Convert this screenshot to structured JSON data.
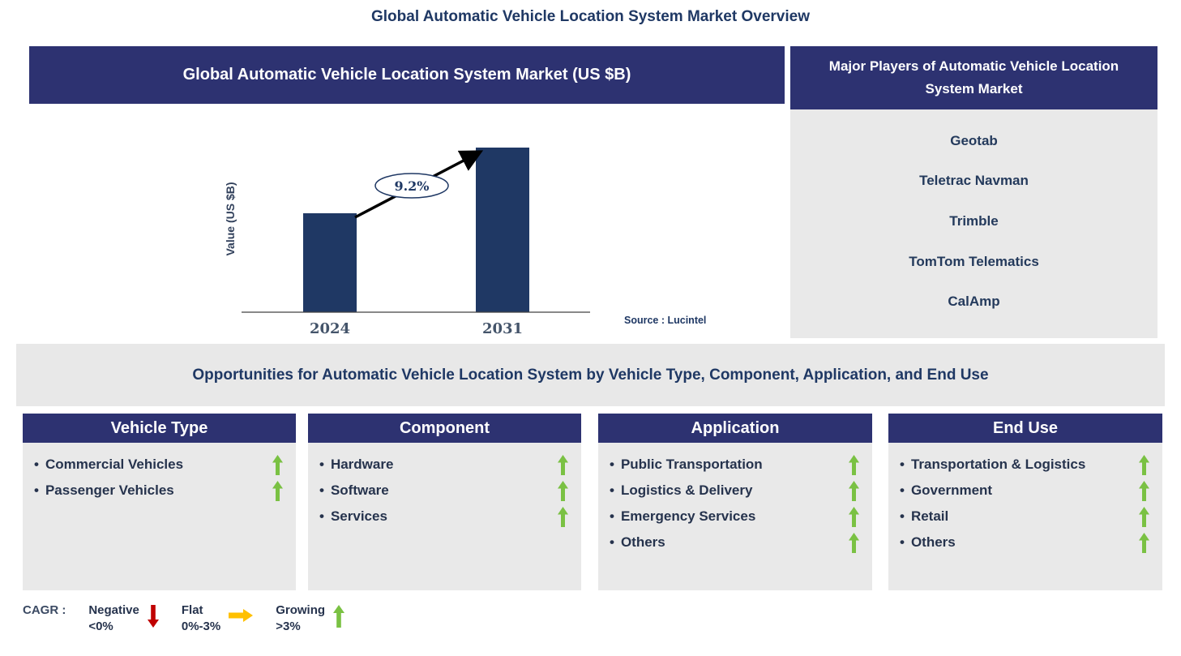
{
  "page": {
    "title": "Global Automatic Vehicle Location System Market Overview"
  },
  "market_chart": {
    "header": "Global Automatic Vehicle Location System Market (US $B)",
    "source": "Source : Lucintel"
  },
  "chart_data": {
    "type": "bar",
    "title": "Global Automatic Vehicle Location System Market (US $B)",
    "categories": [
      "2024",
      "2031"
    ],
    "values_relative": [
      0.6,
      1.0
    ],
    "value_axis_labeled": false,
    "ylabel": "Value (US $B)",
    "xlabel": "",
    "cagr_label": "9.2%",
    "annotation": "Growth arrow from top of 2024 bar to top of 2031 bar with CAGR 9.2% in ellipse",
    "bar_color": "#1F3864",
    "grid": false,
    "legend_position": "none"
  },
  "major_players": {
    "header": "Major Players of Automatic Vehicle Location System Market",
    "names": [
      "Geotab",
      "Teletrac Navman",
      "Trimble",
      "TomTom Telematics",
      "CalAmp"
    ]
  },
  "opportunities": {
    "title": "Opportunities for Automatic Vehicle Location System by Vehicle Type, Component, Application, and End Use",
    "bullet": "•",
    "columns": [
      {
        "title": "Vehicle Type",
        "items": [
          "Commercial Vehicles",
          "Passenger Vehicles"
        ]
      },
      {
        "title": "Component",
        "items": [
          "Hardware",
          "Software",
          "Services"
        ]
      },
      {
        "title": "Application",
        "items": [
          "Public Transportation",
          "Logistics & Delivery",
          "Emergency Services",
          "Others"
        ]
      },
      {
        "title": "End Use",
        "items": [
          "Transportation & Logistics",
          "Government",
          "Retail",
          "Others"
        ]
      }
    ],
    "item_trend": "growing"
  },
  "legend": {
    "label": "CAGR :",
    "entries": [
      {
        "name": "Negative",
        "range": "<0%",
        "direction": "down",
        "color": "#C00000"
      },
      {
        "name": "Flat",
        "range": "0%-3%",
        "direction": "right",
        "color": "#FFC000"
      },
      {
        "name": "Growing",
        "range": ">3%",
        "direction": "up",
        "color": "#7AC143"
      }
    ]
  },
  "colors": {
    "navy_header": "#2D3271",
    "bar_navy": "#1F3864",
    "text_navy": "#1F3864",
    "item_text": "#26334D",
    "tick_text": "#44546A",
    "panel_gray": "#E9E9E9",
    "growing_green": "#7AC143",
    "negative_red": "#C00000",
    "flat_yellow": "#FFC000"
  }
}
